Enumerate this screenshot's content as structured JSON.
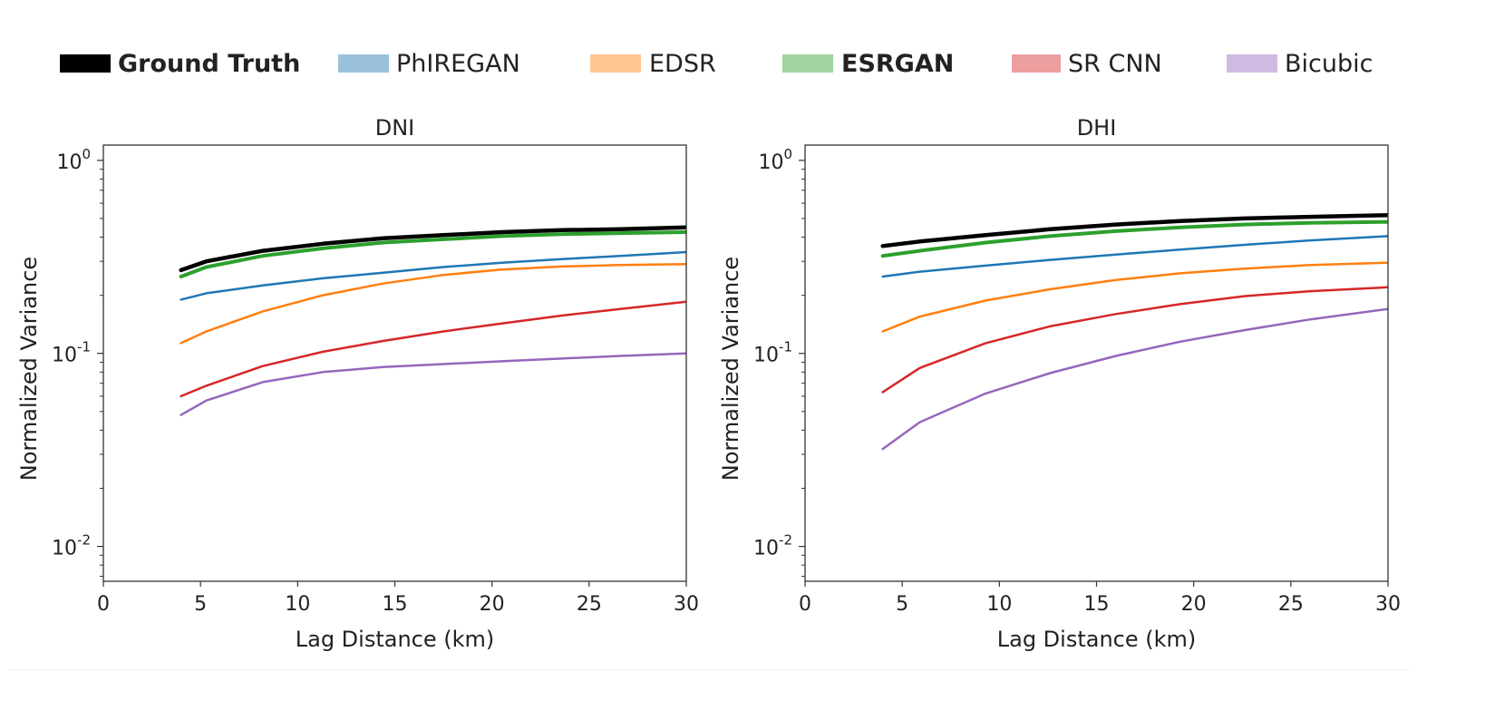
{
  "legend": [
    {
      "label": "Ground Truth",
      "color": "#000000",
      "bold": true,
      "swatch_alpha": 1.0
    },
    {
      "label": "PhIREGAN",
      "color": "#1f77b4",
      "bold": false,
      "swatch_alpha": 0.45
    },
    {
      "label": "EDSR",
      "color": "#ff7f0e",
      "bold": false,
      "swatch_alpha": 0.45
    },
    {
      "label": "ESRGAN",
      "color": "#2ca02c",
      "bold": true,
      "swatch_alpha": 0.45
    },
    {
      "label": "SR CNN",
      "color": "#d62728",
      "bold": false,
      "swatch_alpha": 0.45
    },
    {
      "label": "Bicubic",
      "color": "#9467bd",
      "bold": false,
      "swatch_alpha": 0.45
    }
  ],
  "chart_data": [
    {
      "type": "line",
      "title": "DNI",
      "xlabel": "Lag Distance (km)",
      "ylabel": "Normalized Variance",
      "xlim": [
        0,
        30
      ],
      "ylim": [
        0.0066,
        1.2
      ],
      "yscale": "log",
      "xticks": [
        "0",
        "5",
        "10",
        "15",
        "20",
        "25",
        "30"
      ],
      "yticks": [
        {
          "base": "10",
          "exp": "0",
          "value": 1
        },
        {
          "base": "10",
          "exp": "-1",
          "value": 0.1
        },
        {
          "base": "10",
          "exp": "-2",
          "value": 0.01
        }
      ],
      "x": [
        4,
        5.3,
        8.2,
        11.3,
        14.4,
        17.5,
        20.5,
        23.6,
        26.6,
        30
      ],
      "series": [
        {
          "name": "Ground Truth",
          "color": "#000000",
          "width": 4.5,
          "values": [
            0.27,
            0.3,
            0.34,
            0.37,
            0.395,
            0.41,
            0.425,
            0.435,
            0.44,
            0.45
          ]
        },
        {
          "name": "ESRGAN",
          "color": "#2ca02c",
          "width": 4,
          "values": [
            0.25,
            0.28,
            0.32,
            0.35,
            0.375,
            0.39,
            0.405,
            0.415,
            0.42,
            0.425
          ]
        },
        {
          "name": "PhIREGAN",
          "color": "#1f77b4",
          "width": 2.5,
          "values": [
            0.19,
            0.205,
            0.225,
            0.245,
            0.262,
            0.28,
            0.295,
            0.308,
            0.32,
            0.335
          ]
        },
        {
          "name": "EDSR",
          "color": "#ff7f0e",
          "width": 2.5,
          "values": [
            0.113,
            0.13,
            0.165,
            0.2,
            0.23,
            0.255,
            0.272,
            0.282,
            0.287,
            0.29
          ]
        },
        {
          "name": "SR CNN",
          "color": "#d62728",
          "width": 2.5,
          "values": [
            0.06,
            0.068,
            0.086,
            0.102,
            0.116,
            0.13,
            0.143,
            0.157,
            0.17,
            0.185
          ]
        },
        {
          "name": "Bicubic",
          "color": "#9467bd",
          "width": 2.5,
          "values": [
            0.048,
            0.057,
            0.071,
            0.08,
            0.085,
            0.088,
            0.091,
            0.094,
            0.097,
            0.1
          ]
        }
      ]
    },
    {
      "type": "line",
      "title": "DHI",
      "xlabel": "Lag Distance (km)",
      "ylabel": "Normalized Variance",
      "xlim": [
        0,
        30
      ],
      "ylim": [
        0.0066,
        1.2
      ],
      "yscale": "log",
      "xticks": [
        "0",
        "5",
        "10",
        "15",
        "20",
        "25",
        "30"
      ],
      "yticks": [
        {
          "base": "10",
          "exp": "0",
          "value": 1
        },
        {
          "base": "10",
          "exp": "-1",
          "value": 0.1
        },
        {
          "base": "10",
          "exp": "-2",
          "value": 0.01
        }
      ],
      "x": [
        4,
        5.9,
        9.3,
        12.6,
        16,
        19.3,
        22.6,
        26,
        30
      ],
      "series": [
        {
          "name": "Ground Truth",
          "color": "#000000",
          "width": 4.5,
          "values": [
            0.36,
            0.38,
            0.41,
            0.44,
            0.465,
            0.485,
            0.5,
            0.51,
            0.52
          ]
        },
        {
          "name": "ESRGAN",
          "color": "#2ca02c",
          "width": 4,
          "values": [
            0.32,
            0.34,
            0.375,
            0.405,
            0.43,
            0.45,
            0.465,
            0.475,
            0.48
          ]
        },
        {
          "name": "PhIREGAN",
          "color": "#1f77b4",
          "width": 2.5,
          "values": [
            0.25,
            0.265,
            0.285,
            0.305,
            0.325,
            0.345,
            0.365,
            0.385,
            0.405
          ]
        },
        {
          "name": "EDSR",
          "color": "#ff7f0e",
          "width": 2.5,
          "values": [
            0.13,
            0.155,
            0.188,
            0.215,
            0.24,
            0.26,
            0.275,
            0.287,
            0.295
          ]
        },
        {
          "name": "SR CNN",
          "color": "#d62728",
          "width": 2.5,
          "values": [
            0.063,
            0.084,
            0.113,
            0.138,
            0.16,
            0.18,
            0.198,
            0.21,
            0.22
          ]
        },
        {
          "name": "Bicubic",
          "color": "#9467bd",
          "width": 2.5,
          "values": [
            0.032,
            0.044,
            0.062,
            0.079,
            0.097,
            0.115,
            0.132,
            0.15,
            0.17
          ]
        }
      ]
    }
  ]
}
